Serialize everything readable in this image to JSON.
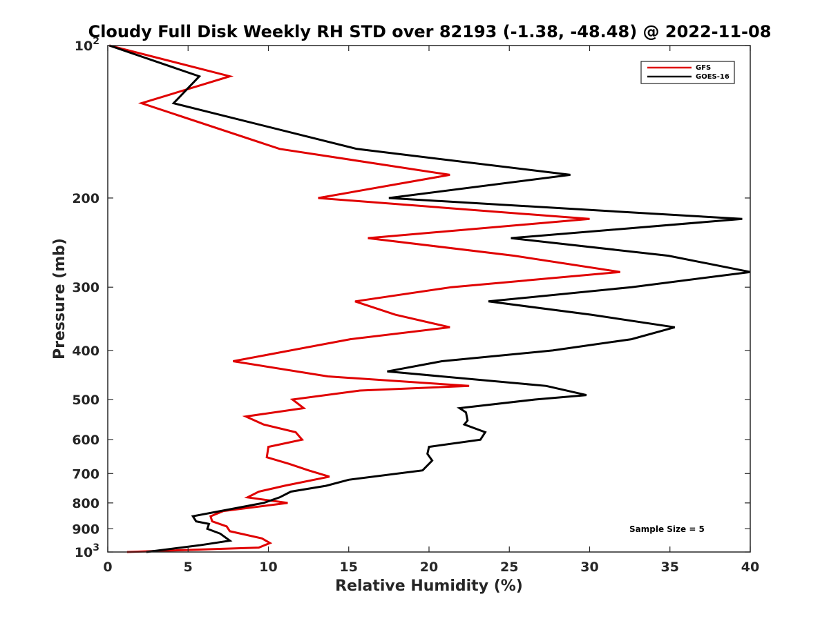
{
  "chart_data": {
    "type": "line",
    "title": "Cloudy Full Disk Weekly RH STD over 82193 (-1.38, -48.48) @ 2022-11-08",
    "xlabel": "Relative Humidity (%)",
    "ylabel": "Pressure (mb)",
    "xlim": [
      0,
      40
    ],
    "ylim": [
      100,
      1000
    ],
    "yscale": "log",
    "y_reversed": true,
    "grid": false,
    "legend_position": "top-right",
    "annotation": "Sample Size = 5",
    "xticks": [
      "0",
      "5",
      "10",
      "15",
      "20",
      "25",
      "30",
      "35",
      "40"
    ],
    "yticks": [
      {
        "value": 100,
        "base": "10",
        "exp": "2"
      },
      {
        "value": 200,
        "label": "200"
      },
      {
        "value": 300,
        "label": "300"
      },
      {
        "value": 400,
        "label": "400"
      },
      {
        "value": 500,
        "label": "500"
      },
      {
        "value": 600,
        "label": "600"
      },
      {
        "value": 700,
        "label": "700"
      },
      {
        "value": 800,
        "label": "800"
      },
      {
        "value": 900,
        "label": "900"
      },
      {
        "value": 1000,
        "base": "10",
        "exp": "3"
      }
    ],
    "series": [
      {
        "name": "GFS",
        "color": "#e00000",
        "points": [
          [
            0.1,
            100
          ],
          [
            7.6,
            115
          ],
          [
            2.1,
            130
          ],
          [
            10.7,
            160
          ],
          [
            21.3,
            180
          ],
          [
            13.1,
            200
          ],
          [
            30.0,
            220
          ],
          [
            16.2,
            240
          ],
          [
            25.3,
            260
          ],
          [
            31.9,
            280
          ],
          [
            21.4,
            300
          ],
          [
            15.4,
            320
          ],
          [
            17.9,
            340
          ],
          [
            21.3,
            360
          ],
          [
            15.1,
            380
          ],
          [
            7.8,
            420
          ],
          [
            13.7,
            450
          ],
          [
            22.5,
            470
          ],
          [
            15.7,
            480
          ],
          [
            11.5,
            500
          ],
          [
            12.2,
            520
          ],
          [
            8.6,
            540
          ],
          [
            9.7,
            560
          ],
          [
            11.7,
            580
          ],
          [
            12.1,
            600
          ],
          [
            10.0,
            620
          ],
          [
            9.9,
            650
          ],
          [
            11.3,
            670
          ],
          [
            12.5,
            690
          ],
          [
            13.8,
            710
          ],
          [
            11.0,
            740
          ],
          [
            9.4,
            760
          ],
          [
            8.7,
            780
          ],
          [
            11.2,
            800
          ],
          [
            7.2,
            830
          ],
          [
            6.4,
            850
          ],
          [
            6.5,
            870
          ],
          [
            7.4,
            890
          ],
          [
            7.6,
            910
          ],
          [
            9.6,
            940
          ],
          [
            10.1,
            960
          ],
          [
            9.4,
            980
          ],
          [
            1.2,
            1000
          ]
        ]
      },
      {
        "name": "GOES-16",
        "color": "#000000",
        "points": [
          [
            0.1,
            100
          ],
          [
            5.7,
            115
          ],
          [
            4.1,
            130
          ],
          [
            15.5,
            160
          ],
          [
            28.8,
            180
          ],
          [
            17.5,
            200
          ],
          [
            39.5,
            220
          ],
          [
            25.1,
            240
          ],
          [
            34.9,
            260
          ],
          [
            40.0,
            280
          ],
          [
            32.6,
            300
          ],
          [
            23.7,
            320
          ],
          [
            30.1,
            340
          ],
          [
            35.3,
            360
          ],
          [
            32.6,
            380
          ],
          [
            27.7,
            400
          ],
          [
            20.8,
            420
          ],
          [
            17.4,
            440
          ],
          [
            27.3,
            470
          ],
          [
            29.8,
            490
          ],
          [
            26.6,
            500
          ],
          [
            21.9,
            520
          ],
          [
            22.3,
            530
          ],
          [
            22.4,
            550
          ],
          [
            22.2,
            560
          ],
          [
            23.5,
            580
          ],
          [
            23.2,
            600
          ],
          [
            20.0,
            620
          ],
          [
            19.9,
            640
          ],
          [
            20.2,
            660
          ],
          [
            19.6,
            690
          ],
          [
            15.0,
            720
          ],
          [
            13.6,
            740
          ],
          [
            11.4,
            760
          ],
          [
            10.7,
            780
          ],
          [
            9.7,
            800
          ],
          [
            5.3,
            850
          ],
          [
            5.5,
            870
          ],
          [
            6.3,
            880
          ],
          [
            6.2,
            900
          ],
          [
            7.0,
            920
          ],
          [
            7.6,
            950
          ],
          [
            5.7,
            970
          ],
          [
            2.4,
            1000
          ]
        ]
      }
    ]
  }
}
